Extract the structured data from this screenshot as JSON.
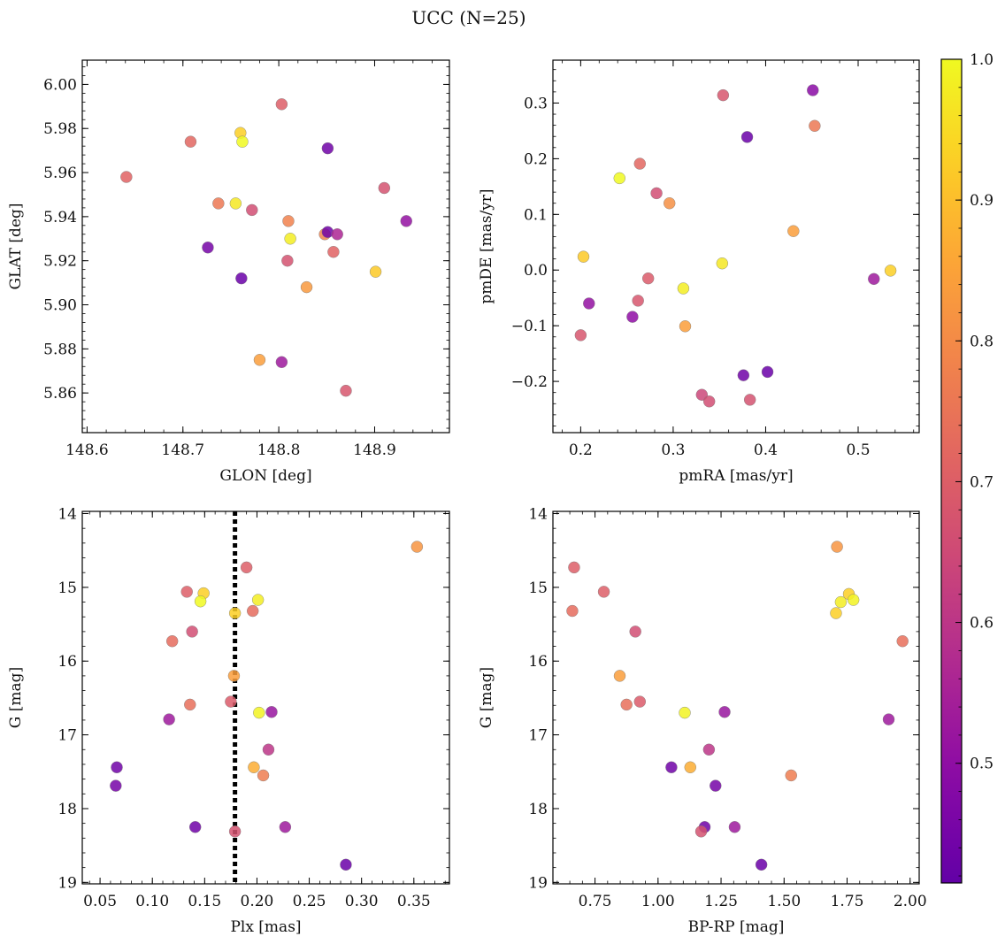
{
  "figure": {
    "suptitle": "UCC (N=25)"
  },
  "colormap": {
    "name": "plasma",
    "vmin": 0.415,
    "vmax": 1.0,
    "ticks": [
      0.5,
      0.6,
      0.7,
      0.8,
      0.9,
      1.0
    ],
    "tick_labels": [
      "0.5",
      "0.6",
      "0.7",
      "0.8",
      "0.9",
      "1.0"
    ]
  },
  "chart_data": [
    {
      "type": "scatter",
      "panel": "top-left",
      "xlabel": "GLON [deg]",
      "ylabel": "GLAT [deg]",
      "xlim": [
        148.595,
        148.978
      ],
      "ylim": [
        5.842,
        6.011
      ],
      "y_inverted": false,
      "xticks": [
        148.6,
        148.7,
        148.8,
        148.9
      ],
      "xtick_labels": [
        "148.6",
        "148.7",
        "148.8",
        "148.9"
      ],
      "yticks": [
        5.86,
        5.88,
        5.9,
        5.92,
        5.94,
        5.96,
        5.98,
        6.0
      ],
      "ytick_labels": [
        "5.86",
        "5.88",
        "5.90",
        "5.92",
        "5.94",
        "5.96",
        "5.98",
        "6.00"
      ],
      "x": [
        148.641,
        148.708,
        148.737,
        148.755,
        148.76,
        148.762,
        148.772,
        148.78,
        148.803,
        148.809,
        148.812,
        148.829,
        148.848,
        148.857,
        148.87,
        148.901,
        148.91,
        148.803,
        148.761,
        148.726,
        148.81,
        148.851,
        148.861,
        148.933,
        148.851
      ],
      "y": [
        5.958,
        5.974,
        5.946,
        5.946,
        5.978,
        5.974,
        5.943,
        5.875,
        5.991,
        5.92,
        5.93,
        5.908,
        5.932,
        5.924,
        5.861,
        5.915,
        5.953,
        5.874,
        5.912,
        5.926,
        5.938,
        5.933,
        5.932,
        5.938,
        5.971
      ],
      "c": [
        0.71,
        0.72,
        0.76,
        0.97,
        0.93,
        1.0,
        0.66,
        0.84,
        0.7,
        0.67,
        0.98,
        0.83,
        0.78,
        0.71,
        0.68,
        0.92,
        0.67,
        0.53,
        0.43,
        0.45,
        0.78,
        0.44,
        0.56,
        0.51,
        0.44
      ]
    },
    {
      "type": "scatter",
      "panel": "top-right",
      "xlabel": "pmRA [mas/yr]",
      "ylabel": "pmDE [mas/yr]",
      "xlim": [
        0.17,
        0.566
      ],
      "ylim": [
        -0.292,
        0.377
      ],
      "y_inverted": false,
      "xticks": [
        0.2,
        0.3,
        0.4,
        0.5
      ],
      "xtick_labels": [
        "0.2",
        "0.3",
        "0.4",
        "0.5"
      ],
      "yticks": [
        -0.2,
        -0.1,
        0.0,
        0.1,
        0.2,
        0.3
      ],
      "ytick_labels": [
        "−0.2",
        "−0.1",
        "0.0",
        "0.1",
        "0.2",
        "0.3"
      ],
      "x": [
        0.2,
        0.203,
        0.209,
        0.242,
        0.256,
        0.262,
        0.264,
        0.273,
        0.282,
        0.296,
        0.311,
        0.313,
        0.331,
        0.339,
        0.354,
        0.353,
        0.376,
        0.38,
        0.383,
        0.402,
        0.43,
        0.451,
        0.453,
        0.517,
        0.535
      ],
      "y": [
        -0.117,
        0.024,
        -0.06,
        0.165,
        -0.084,
        -0.055,
        0.191,
        -0.015,
        0.138,
        0.12,
        -0.033,
        -0.101,
        -0.224,
        -0.236,
        0.314,
        0.012,
        -0.189,
        0.239,
        -0.233,
        -0.183,
        0.07,
        0.323,
        0.259,
        -0.016,
        -0.001
      ],
      "c": [
        0.68,
        0.92,
        0.51,
        1.0,
        0.5,
        0.68,
        0.72,
        0.69,
        0.66,
        0.81,
        0.98,
        0.84,
        0.64,
        0.66,
        0.68,
        0.97,
        0.44,
        0.43,
        0.67,
        0.43,
        0.84,
        0.49,
        0.76,
        0.53,
        0.93
      ]
    },
    {
      "type": "scatter",
      "panel": "bottom-left",
      "xlabel": "Plx [mas]",
      "ylabel": "G [mag]",
      "xlim": [
        0.033,
        0.384
      ],
      "ylim": [
        19.02,
        13.97
      ],
      "y_inverted": true,
      "xticks": [
        0.05,
        0.1,
        0.15,
        0.2,
        0.25,
        0.3,
        0.35
      ],
      "xtick_labels": [
        "0.05",
        "0.10",
        "0.15",
        "0.20",
        "0.25",
        "0.30",
        "0.35"
      ],
      "yticks": [
        14,
        15,
        16,
        17,
        18,
        19
      ],
      "ytick_labels": [
        "14",
        "15",
        "16",
        "17",
        "18",
        "19"
      ],
      "vline": {
        "x": 0.179,
        "style": "dotted",
        "color": "#000000"
      },
      "x": [
        0.353,
        0.19,
        0.133,
        0.149,
        0.146,
        0.201,
        0.179,
        0.196,
        0.138,
        0.119,
        0.178,
        0.136,
        0.175,
        0.202,
        0.214,
        0.116,
        0.211,
        0.197,
        0.206,
        0.066,
        0.065,
        0.141,
        0.179,
        0.227,
        0.285
      ],
      "y": [
        14.45,
        14.73,
        15.06,
        15.08,
        15.19,
        15.17,
        15.35,
        15.32,
        15.6,
        15.73,
        16.2,
        16.59,
        16.55,
        16.7,
        16.69,
        16.79,
        17.2,
        17.44,
        17.55,
        17.44,
        17.69,
        18.25,
        18.31,
        18.25,
        18.76
      ],
      "c": [
        0.82,
        0.7,
        0.7,
        0.93,
        1.0,
        0.98,
        0.93,
        0.73,
        0.66,
        0.73,
        0.84,
        0.74,
        0.69,
        0.99,
        0.52,
        0.53,
        0.6,
        0.87,
        0.77,
        0.44,
        0.45,
        0.44,
        0.67,
        0.53,
        0.43
      ]
    },
    {
      "type": "scatter",
      "panel": "bottom-right",
      "xlabel": "BP-RP [mag]",
      "ylabel": "G [mag]",
      "xlim": [
        0.583,
        2.036
      ],
      "ylim": [
        19.02,
        13.97
      ],
      "y_inverted": true,
      "xticks": [
        0.75,
        1.0,
        1.25,
        1.5,
        1.75,
        2.0
      ],
      "xtick_labels": [
        "0.75",
        "1.00",
        "1.25",
        "1.50",
        "1.75",
        "2.00"
      ],
      "yticks": [
        14,
        15,
        16,
        17,
        18,
        19
      ],
      "ytick_labels": [
        "14",
        "15",
        "16",
        "17",
        "18",
        "19"
      ],
      "x": [
        1.71,
        0.667,
        0.785,
        0.66,
        1.757,
        1.725,
        1.775,
        1.706,
        0.91,
        1.97,
        0.848,
        0.875,
        0.928,
        1.106,
        1.264,
        1.915,
        1.202,
        1.053,
        1.128,
        1.528,
        1.228,
        1.185,
        1.171,
        1.304,
        1.41
      ],
      "y": [
        14.45,
        14.73,
        15.06,
        15.32,
        15.09,
        15.2,
        15.17,
        15.35,
        15.6,
        15.73,
        16.2,
        16.59,
        16.55,
        16.7,
        16.69,
        16.79,
        17.2,
        17.44,
        17.44,
        17.55,
        17.69,
        18.25,
        18.31,
        18.25,
        18.76
      ],
      "c": [
        0.82,
        0.7,
        0.7,
        0.73,
        0.93,
        0.98,
        0.99,
        0.93,
        0.66,
        0.74,
        0.84,
        0.74,
        0.69,
        0.99,
        0.52,
        0.53,
        0.6,
        0.44,
        0.87,
        0.77,
        0.45,
        0.44,
        0.67,
        0.53,
        0.43
      ]
    }
  ]
}
